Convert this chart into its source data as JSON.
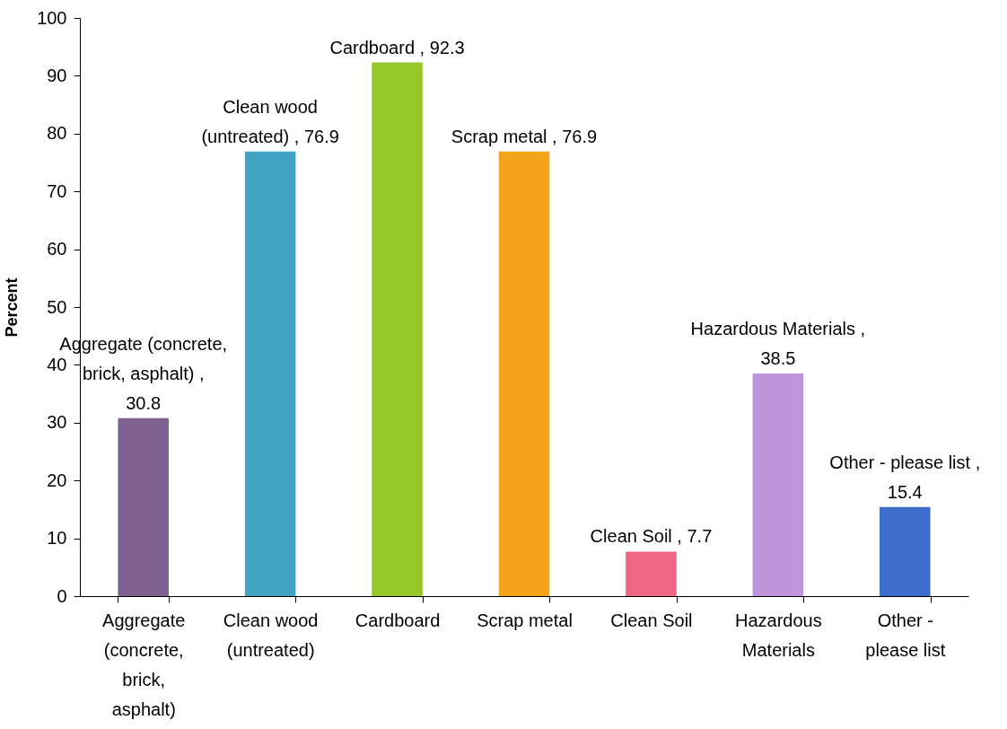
{
  "chart_data": {
    "type": "bar",
    "ylabel": "Percent",
    "categories": [
      "Aggregate (concrete, brick, asphalt)",
      "Clean wood (untreated)",
      "Cardboard",
      "Scrap metal",
      "Clean Soil",
      "Hazardous Materials",
      "Other - please list"
    ],
    "values": [
      30.8,
      76.9,
      92.3,
      76.9,
      7.7,
      38.5,
      15.4
    ],
    "colors": [
      "#7f6290",
      "#41a4c3",
      "#97c72a",
      "#f4a31c",
      "#ef6684",
      "#c094da",
      "#3d6dcc"
    ],
    "value_labels": [
      "Aggregate (concrete, brick, asphalt) , 30.8",
      "Clean wood (untreated) , 76.9",
      "Cardboard , 92.3",
      "Scrap metal , 76.9",
      "Clean Soil , 7.7",
      "Hazardous Materials , 38.5",
      "Other - please list , 15.4"
    ],
    "ylim": [
      0,
      100
    ],
    "yticks": [
      0,
      10,
      20,
      30,
      40,
      50,
      60,
      70,
      80,
      90,
      100
    ],
    "grid": false
  }
}
